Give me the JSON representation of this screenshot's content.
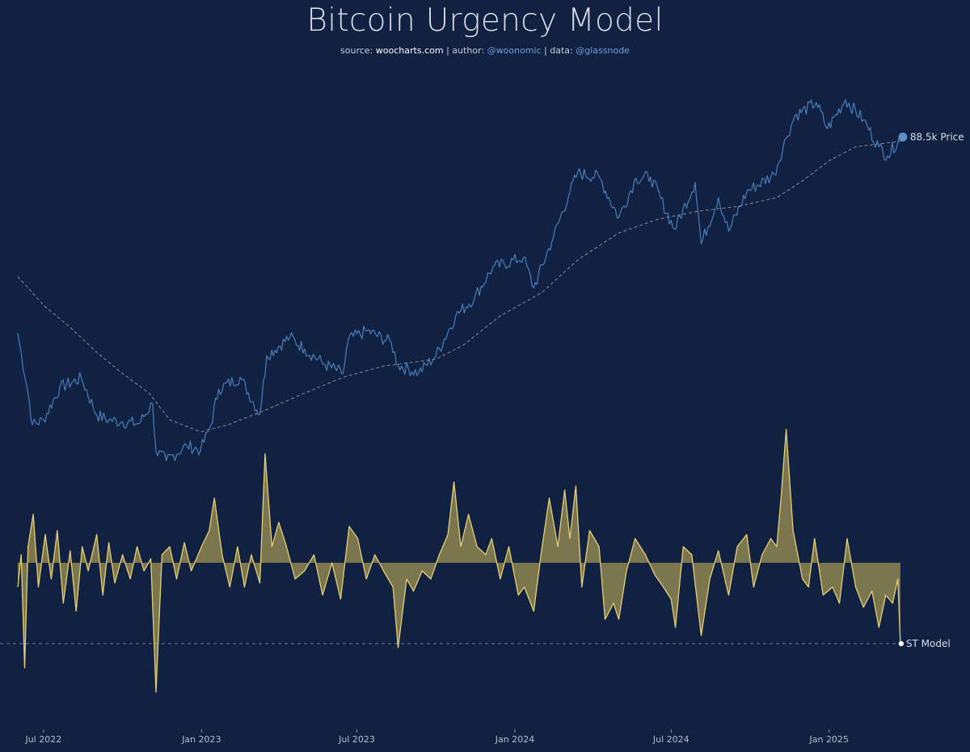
{
  "header": {
    "title": "Bitcoin Urgency Model",
    "source_label": "source:",
    "source_value": "woocharts.com",
    "author_label": "author:",
    "author_value": "@woonomic",
    "data_label": "data:",
    "data_value": "@glassnode",
    "separator": "|"
  },
  "colors": {
    "background": "#112142",
    "price_line": "#4a7fb8",
    "moving_average": "#a9a9a9",
    "st_model_line": "#e6cf73",
    "st_model_fill": "#8f8550",
    "baseline": "#cfcfcf"
  },
  "chart_data": [
    {
      "type": "line",
      "title": "",
      "x_axis_type": "date",
      "x_range": [
        "2022-06-01",
        "2025-03-27"
      ],
      "x_ticks": [
        "Jul 2022",
        "Jan 2023",
        "Jul 2023",
        "Jan 2024",
        "Jul 2024",
        "Jan 2025"
      ],
      "y_axis": "log, hidden",
      "series": [
        {
          "name": "Price",
          "style": "solid blue line",
          "points": [
            [
              "2022-06-01",
              31000
            ],
            [
              "2022-06-13",
              22500
            ],
            [
              "2022-06-18",
              19000
            ],
            [
              "2022-07-01",
              19500
            ],
            [
              "2022-07-20",
              23200
            ],
            [
              "2022-08-14",
              24400
            ],
            [
              "2022-09-01",
              20000
            ],
            [
              "2022-09-15",
              19500
            ],
            [
              "2022-10-01",
              19300
            ],
            [
              "2022-10-20",
              19100
            ],
            [
              "2022-11-05",
              21300
            ],
            [
              "2022-11-09",
              16500
            ],
            [
              "2022-11-21",
              15700
            ],
            [
              "2022-12-15",
              17000
            ],
            [
              "2022-12-31",
              16600
            ],
            [
              "2023-01-12",
              19000
            ],
            [
              "2023-01-21",
              23000
            ],
            [
              "2023-02-15",
              24500
            ],
            [
              "2023-03-10",
              20100
            ],
            [
              "2023-03-18",
              27500
            ],
            [
              "2023-04-14",
              30400
            ],
            [
              "2023-05-01",
              28500
            ],
            [
              "2023-05-25",
              26200
            ],
            [
              "2023-06-15",
              25000
            ],
            [
              "2023-06-21",
              30000
            ],
            [
              "2023-07-13",
              31400
            ],
            [
              "2023-08-10",
              29500
            ],
            [
              "2023-08-18",
              26100
            ],
            [
              "2023-09-11",
              25100
            ],
            [
              "2023-10-01",
              27500
            ],
            [
              "2023-10-24",
              34000
            ],
            [
              "2023-11-15",
              37500
            ],
            [
              "2023-12-06",
              44000
            ],
            [
              "2024-01-11",
              46500
            ],
            [
              "2024-01-23",
              39500
            ],
            [
              "2024-02-15",
              52000
            ],
            [
              "2024-03-05",
              66000
            ],
            [
              "2024-03-14",
              73000
            ],
            [
              "2024-04-08",
              71500
            ],
            [
              "2024-05-01",
              57500
            ],
            [
              "2024-05-21",
              71000
            ],
            [
              "2024-06-07",
              71500
            ],
            [
              "2024-07-05",
              54000
            ],
            [
              "2024-07-29",
              69500
            ],
            [
              "2024-08-05",
              50000
            ],
            [
              "2024-08-25",
              64000
            ],
            [
              "2024-09-06",
              53500
            ],
            [
              "2024-09-27",
              66000
            ],
            [
              "2024-10-29",
              72500
            ],
            [
              "2024-11-12",
              88000
            ],
            [
              "2024-11-22",
              99000
            ],
            [
              "2024-12-17",
              106500
            ],
            [
              "2024-12-30",
              92500
            ],
            [
              "2025-01-20",
              108000
            ],
            [
              "2025-02-10",
              97000
            ],
            [
              "2025-02-28",
              84000
            ],
            [
              "2025-03-10",
              80000
            ],
            [
              "2025-03-25",
              88500
            ]
          ]
        },
        {
          "name": "",
          "style": "dashed gray line",
          "points": [
            [
              "2022-06-01",
              42000
            ],
            [
              "2022-07-01",
              36000
            ],
            [
              "2022-08-01",
              32000
            ],
            [
              "2022-09-01",
              28000
            ],
            [
              "2022-10-01",
              25000
            ],
            [
              "2022-11-01",
              22500
            ],
            [
              "2022-11-25",
              19500
            ],
            [
              "2022-12-31",
              18300
            ],
            [
              "2023-02-01",
              19000
            ],
            [
              "2023-03-15",
              20500
            ],
            [
              "2023-05-01",
              22500
            ],
            [
              "2023-06-15",
              24500
            ],
            [
              "2023-08-01",
              26000
            ],
            [
              "2023-10-01",
              27000
            ],
            [
              "2023-11-01",
              29000
            ],
            [
              "2023-12-15",
              34000
            ],
            [
              "2024-02-01",
              38500
            ],
            [
              "2024-03-15",
              46000
            ],
            [
              "2024-05-01",
              53000
            ],
            [
              "2024-06-15",
              57000
            ],
            [
              "2024-08-01",
              59500
            ],
            [
              "2024-09-15",
              61000
            ],
            [
              "2024-11-01",
              64000
            ],
            [
              "2024-12-01",
              70000
            ],
            [
              "2025-01-01",
              78000
            ],
            [
              "2025-02-01",
              84000
            ],
            [
              "2025-03-25",
              86500
            ]
          ]
        }
      ],
      "end_label": "88.5k Price"
    },
    {
      "type": "area",
      "title": "",
      "x_axis_type": "date",
      "x_range": [
        "2022-06-01",
        "2025-03-27"
      ],
      "baseline": 0,
      "y_range": [
        -1.65,
        1.65
      ],
      "series": [
        {
          "name": "ST Model",
          "style": "yellow line with olive fill to zero",
          "points": [
            [
              "2022-06-01",
              -0.3
            ],
            [
              "2022-06-05",
              0.1
            ],
            [
              "2022-06-09",
              -1.3
            ],
            [
              "2022-06-13",
              0.2
            ],
            [
              "2022-06-19",
              0.6
            ],
            [
              "2022-06-25",
              -0.3
            ],
            [
              "2022-07-03",
              0.35
            ],
            [
              "2022-07-10",
              -0.2
            ],
            [
              "2022-07-17",
              0.4
            ],
            [
              "2022-07-24",
              -0.5
            ],
            [
              "2022-08-01",
              0.15
            ],
            [
              "2022-08-08",
              -0.6
            ],
            [
              "2022-08-15",
              0.2
            ],
            [
              "2022-08-22",
              -0.1
            ],
            [
              "2022-09-01",
              0.35
            ],
            [
              "2022-09-08",
              -0.4
            ],
            [
              "2022-09-15",
              0.25
            ],
            [
              "2022-09-22",
              -0.25
            ],
            [
              "2022-10-01",
              0.1
            ],
            [
              "2022-10-10",
              -0.2
            ],
            [
              "2022-10-18",
              0.2
            ],
            [
              "2022-10-26",
              -0.1
            ],
            [
              "2022-11-03",
              0.05
            ],
            [
              "2022-11-09",
              -1.6
            ],
            [
              "2022-11-16",
              0.1
            ],
            [
              "2022-11-25",
              0.2
            ],
            [
              "2022-12-03",
              -0.2
            ],
            [
              "2022-12-12",
              0.25
            ],
            [
              "2022-12-20",
              -0.1
            ],
            [
              "2023-01-01",
              0.2
            ],
            [
              "2023-01-10",
              0.4
            ],
            [
              "2023-01-16",
              0.8
            ],
            [
              "2023-01-25",
              0.1
            ],
            [
              "2023-02-03",
              -0.3
            ],
            [
              "2023-02-12",
              0.2
            ],
            [
              "2023-02-20",
              -0.3
            ],
            [
              "2023-02-28",
              0.1
            ],
            [
              "2023-03-10",
              -0.25
            ],
            [
              "2023-03-16",
              1.35
            ],
            [
              "2023-03-24",
              0.2
            ],
            [
              "2023-04-01",
              0.5
            ],
            [
              "2023-04-10",
              0.2
            ],
            [
              "2023-04-20",
              -0.2
            ],
            [
              "2023-05-01",
              -0.1
            ],
            [
              "2023-05-12",
              0.1
            ],
            [
              "2023-05-22",
              -0.4
            ],
            [
              "2023-06-02",
              0.0
            ],
            [
              "2023-06-12",
              -0.45
            ],
            [
              "2023-06-22",
              0.45
            ],
            [
              "2023-07-02",
              0.3
            ],
            [
              "2023-07-12",
              -0.2
            ],
            [
              "2023-07-22",
              0.1
            ],
            [
              "2023-08-01",
              -0.1
            ],
            [
              "2023-08-12",
              -0.3
            ],
            [
              "2023-08-18",
              -1.05
            ],
            [
              "2023-08-28",
              -0.2
            ],
            [
              "2023-09-05",
              -0.35
            ],
            [
              "2023-09-15",
              -0.1
            ],
            [
              "2023-09-25",
              -0.2
            ],
            [
              "2023-10-05",
              0.1
            ],
            [
              "2023-10-15",
              0.35
            ],
            [
              "2023-10-22",
              1.0
            ],
            [
              "2023-10-30",
              0.2
            ],
            [
              "2023-11-08",
              0.6
            ],
            [
              "2023-11-18",
              0.2
            ],
            [
              "2023-11-28",
              0.1
            ],
            [
              "2023-12-05",
              0.3
            ],
            [
              "2023-12-15",
              -0.2
            ],
            [
              "2023-12-25",
              0.2
            ],
            [
              "2024-01-05",
              -0.4
            ],
            [
              "2024-01-12",
              -0.3
            ],
            [
              "2024-01-23",
              -0.6
            ],
            [
              "2024-02-01",
              0.15
            ],
            [
              "2024-02-10",
              0.8
            ],
            [
              "2024-02-20",
              0.2
            ],
            [
              "2024-02-28",
              0.9
            ],
            [
              "2024-03-05",
              0.3
            ],
            [
              "2024-03-12",
              0.95
            ],
            [
              "2024-03-19",
              -0.3
            ],
            [
              "2024-03-28",
              0.4
            ],
            [
              "2024-04-08",
              0.2
            ],
            [
              "2024-04-15",
              -0.7
            ],
            [
              "2024-04-25",
              -0.5
            ],
            [
              "2024-05-01",
              -0.7
            ],
            [
              "2024-05-10",
              -0.1
            ],
            [
              "2024-05-20",
              0.3
            ],
            [
              "2024-06-01",
              0.1
            ],
            [
              "2024-06-12",
              -0.15
            ],
            [
              "2024-06-22",
              -0.3
            ],
            [
              "2024-07-01",
              -0.45
            ],
            [
              "2024-07-06",
              -0.8
            ],
            [
              "2024-07-15",
              0.2
            ],
            [
              "2024-07-25",
              0.1
            ],
            [
              "2024-08-05",
              -0.9
            ],
            [
              "2024-08-15",
              -0.2
            ],
            [
              "2024-08-25",
              0.15
            ],
            [
              "2024-09-06",
              -0.4
            ],
            [
              "2024-09-16",
              0.2
            ],
            [
              "2024-09-27",
              0.35
            ],
            [
              "2024-10-05",
              -0.3
            ],
            [
              "2024-10-15",
              0.1
            ],
            [
              "2024-10-25",
              0.3
            ],
            [
              "2024-11-01",
              0.2
            ],
            [
              "2024-11-06",
              0.8
            ],
            [
              "2024-11-12",
              1.65
            ],
            [
              "2024-11-20",
              0.4
            ],
            [
              "2024-12-01",
              -0.2
            ],
            [
              "2024-12-08",
              -0.3
            ],
            [
              "2024-12-15",
              0.3
            ],
            [
              "2024-12-25",
              -0.4
            ],
            [
              "2025-01-05",
              -0.3
            ],
            [
              "2025-01-13",
              -0.5
            ],
            [
              "2025-01-22",
              0.3
            ],
            [
              "2025-02-01",
              -0.3
            ],
            [
              "2025-02-10",
              -0.55
            ],
            [
              "2025-02-20",
              -0.35
            ],
            [
              "2025-02-28",
              -0.8
            ],
            [
              "2025-03-08",
              -0.4
            ],
            [
              "2025-03-16",
              -0.5
            ],
            [
              "2025-03-22",
              -0.2
            ],
            [
              "2025-03-25",
              -1.0
            ]
          ]
        }
      ],
      "end_label": "ST Model"
    }
  ]
}
